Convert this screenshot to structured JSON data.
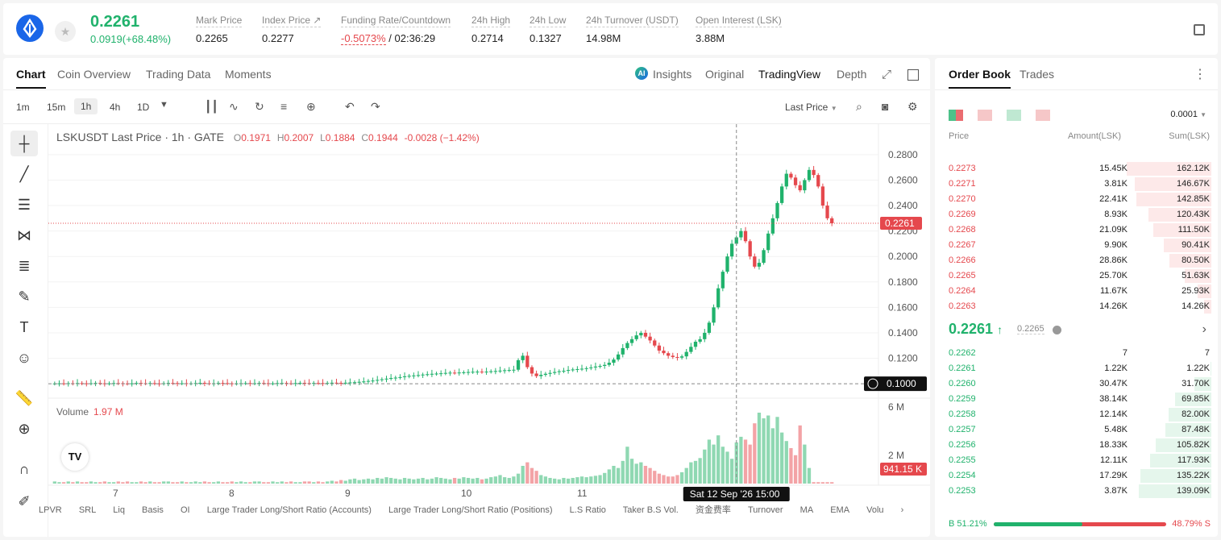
{
  "header": {
    "price": "0.2261",
    "change": "0.0919(+68.48%)",
    "stats": [
      {
        "label": "Mark Price",
        "value": "0.2265"
      },
      {
        "label": "Index Price ↗",
        "value": "0.2277"
      },
      {
        "label": "Funding Rate/Countdown",
        "value_red": "-0.5073%",
        "value": "/ 02:36:29"
      },
      {
        "label": "24h High",
        "value": "0.2714"
      },
      {
        "label": "24h Low",
        "value": "0.1327"
      },
      {
        "label": "24h Turnover (USDT)",
        "value": "14.98M"
      },
      {
        "label": "Open Interest (LSK)",
        "value": "3.88M"
      }
    ]
  },
  "chart_tabs": [
    "Chart",
    "Coin Overview",
    "Trading Data",
    "Moments"
  ],
  "view_tabs": [
    "Insights",
    "Original",
    "TradingView",
    "Depth"
  ],
  "timeframes": [
    "1m",
    "15m",
    "1h",
    "4h",
    "1D"
  ],
  "price_source": "Last Price",
  "legend": {
    "symbol": "LSKUSDT Last Price · 1h · GATE",
    "o": "O",
    "ov": "0.1971",
    "h": "H",
    "hv": "0.2007",
    "l": "L",
    "lv": "0.1884",
    "c": "C",
    "cv": "0.1944",
    "chg": "-0.0028 (−1.42%)"
  },
  "volume": {
    "label": "Volume",
    "value": "1.97 M"
  },
  "bottom_tools": [
    "LPVR",
    "SRL",
    "Liq",
    "Basis",
    "OI",
    "Large Trader Long/Short Ratio (Accounts)",
    "Large Trader Long/Short Ratio (Positions)",
    "L.S Ratio",
    "Taker B.S Vol.",
    "资金费率",
    "Turnover",
    "MA",
    "EMA",
    "Volu"
  ],
  "chart_data": {
    "type": "candlestick",
    "xlabels": [
      "7",
      "8",
      "9",
      "10",
      "11",
      "12"
    ],
    "y_ticks": [
      "0.2800",
      "0.2600",
      "0.2400",
      "0.2200",
      "0.2000",
      "0.1800",
      "0.1600",
      "0.1400",
      "0.1200"
    ],
    "ylim": [
      0.095,
      0.285
    ],
    "last_price": "0.2261",
    "crosshair_price": "0.1000",
    "crosshair_time": "Sat 12 Sep '26   15:00",
    "vol_ticks": [
      "6 M",
      "2 M"
    ],
    "vol_last": "941.15 K",
    "price_path": [
      0.1002,
      0.1003,
      0.1001,
      0.1004,
      0.1002,
      0.1005,
      0.1003,
      0.1002,
      0.1004,
      0.1006,
      0.1003,
      0.1001,
      0.1003,
      0.1005,
      0.1004,
      0.1002,
      0.1001,
      0.1003,
      0.1006,
      0.1004,
      0.1003,
      0.1005,
      0.1002,
      0.1001,
      0.1004,
      0.1006,
      0.1005,
      0.1003,
      0.1004,
      0.1002,
      0.1003,
      0.1005,
      0.1007,
      0.1004,
      0.1002,
      0.1003,
      0.1006,
      0.1005,
      0.1003,
      0.1001,
      0.1002,
      0.1004,
      0.1005,
      0.1003,
      0.1004,
      0.1006,
      0.1004,
      0.1002,
      0.1003,
      0.1005,
      0.1006,
      0.1004,
      0.1003,
      0.1005,
      0.1007,
      0.1005,
      0.1004,
      0.1006,
      0.1005,
      0.1004,
      0.1006,
      0.1008,
      0.1007,
      0.1006,
      0.1008,
      0.101,
      0.1012,
      0.1015,
      0.1018,
      0.1022,
      0.1025,
      0.103,
      0.1035,
      0.104,
      0.1045,
      0.1048,
      0.1052,
      0.1058,
      0.1062,
      0.1065,
      0.1068,
      0.1072,
      0.1075,
      0.1078,
      0.108,
      0.1082,
      0.1085,
      0.1087,
      0.1086,
      0.1088,
      0.109,
      0.1092,
      0.1094,
      0.1095,
      0.1093,
      0.1095,
      0.1098,
      0.11,
      0.1103,
      0.1106,
      0.1108,
      0.111,
      0.1185,
      0.122,
      0.113,
      0.108,
      0.106,
      0.107,
      0.1078,
      0.1085,
      0.1092,
      0.1098,
      0.1102,
      0.1108,
      0.1112,
      0.1115,
      0.1118,
      0.1122,
      0.1128,
      0.1135,
      0.114,
      0.1148,
      0.1165,
      0.119,
      0.123,
      0.128,
      0.132,
      0.135,
      0.138,
      0.14,
      0.137,
      0.134,
      0.13,
      0.126,
      0.124,
      0.122,
      0.121,
      0.1205,
      0.1215,
      0.125,
      0.129,
      0.133,
      0.135,
      0.14,
      0.148,
      0.16,
      0.175,
      0.188,
      0.2,
      0.21,
      0.215,
      0.22,
      0.212,
      0.2,
      0.192,
      0.195,
      0.205,
      0.218,
      0.23,
      0.242,
      0.255,
      0.265,
      0.262,
      0.256,
      0.252,
      0.26,
      0.268,
      0.264,
      0.255,
      0.24,
      0.23,
      0.2261
    ],
    "volume_path": [
      0.03,
      0.02,
      0.02,
      0.03,
      0.02,
      0.03,
      0.02,
      0.02,
      0.03,
      0.02,
      0.02,
      0.03,
      0.02,
      0.02,
      0.03,
      0.02,
      0.03,
      0.02,
      0.02,
      0.03,
      0.02,
      0.03,
      0.02,
      0.02,
      0.03,
      0.03,
      0.02,
      0.02,
      0.03,
      0.02,
      0.02,
      0.03,
      0.02,
      0.03,
      0.02,
      0.02,
      0.03,
      0.02,
      0.02,
      0.03,
      0.02,
      0.03,
      0.02,
      0.02,
      0.03,
      0.03,
      0.02,
      0.02,
      0.03,
      0.02,
      0.03,
      0.02,
      0.03,
      0.02,
      0.02,
      0.03,
      0.03,
      0.02,
      0.03,
      0.02,
      0.03,
      0.04,
      0.03,
      0.05,
      0.04,
      0.06,
      0.07,
      0.05,
      0.06,
      0.07,
      0.06,
      0.08,
      0.07,
      0.09,
      0.08,
      0.07,
      0.06,
      0.08,
      0.07,
      0.06,
      0.07,
      0.08,
      0.06,
      0.07,
      0.09,
      0.08,
      0.07,
      0.06,
      0.08,
      0.07,
      0.09,
      0.08,
      0.07,
      0.08,
      0.06,
      0.07,
      0.09,
      0.1,
      0.12,
      0.09,
      0.08,
      0.1,
      0.14,
      0.25,
      0.3,
      0.22,
      0.18,
      0.12,
      0.1,
      0.08,
      0.07,
      0.06,
      0.08,
      0.07,
      0.08,
      0.09,
      0.1,
      0.09,
      0.1,
      0.11,
      0.12,
      0.15,
      0.2,
      0.25,
      0.22,
      0.32,
      0.52,
      0.35,
      0.28,
      0.3,
      0.25,
      0.22,
      0.18,
      0.14,
      0.12,
      0.1,
      0.1,
      0.12,
      0.16,
      0.22,
      0.3,
      0.32,
      0.36,
      0.48,
      0.62,
      0.55,
      0.68,
      0.52,
      0.45,
      0.35,
      0.58,
      0.66,
      0.62,
      0.55,
      0.85,
      1.0,
      0.92,
      0.96,
      0.78,
      0.94,
      0.72,
      0.6,
      0.5,
      0.4,
      0.82,
      0.55,
      0.22
    ]
  },
  "orderbook": {
    "tabs": [
      "Order Book",
      "Trades"
    ],
    "precision": "0.0001",
    "headers": [
      "Price",
      "Amount(LSK)",
      "Sum(LSK)"
    ],
    "asks": [
      [
        "0.2273",
        "15.45K",
        "162.12K"
      ],
      [
        "0.2271",
        "3.81K",
        "146.67K"
      ],
      [
        "0.2270",
        "22.41K",
        "142.85K"
      ],
      [
        "0.2269",
        "8.93K",
        "120.43K"
      ],
      [
        "0.2268",
        "21.09K",
        "111.50K"
      ],
      [
        "0.2267",
        "9.90K",
        "90.41K"
      ],
      [
        "0.2266",
        "28.86K",
        "80.50K"
      ],
      [
        "0.2265",
        "25.70K",
        "51.63K"
      ],
      [
        "0.2264",
        "11.67K",
        "25.93K"
      ],
      [
        "0.2263",
        "14.26K",
        "14.26K"
      ]
    ],
    "mid": "0.2261",
    "mid_arrow": "↑",
    "mid_mark": "0.2265",
    "bids": [
      [
        "0.2262",
        "7",
        "7"
      ],
      [
        "0.2261",
        "1.22K",
        "1.22K"
      ],
      [
        "0.2260",
        "30.47K",
        "31.70K"
      ],
      [
        "0.2259",
        "38.14K",
        "69.85K"
      ],
      [
        "0.2258",
        "12.14K",
        "82.00K"
      ],
      [
        "0.2257",
        "5.48K",
        "87.48K"
      ],
      [
        "0.2256",
        "18.33K",
        "105.82K"
      ],
      [
        "0.2255",
        "12.11K",
        "117.93K"
      ],
      [
        "0.2254",
        "17.29K",
        "135.22K"
      ],
      [
        "0.2253",
        "3.87K",
        "139.09K"
      ]
    ],
    "buy_ratio": "B 51.21%",
    "sell_ratio": "48.79% S",
    "buy_pct": 51.21
  },
  "colors": {
    "green": "#20b26c",
    "red": "#e5484d"
  }
}
